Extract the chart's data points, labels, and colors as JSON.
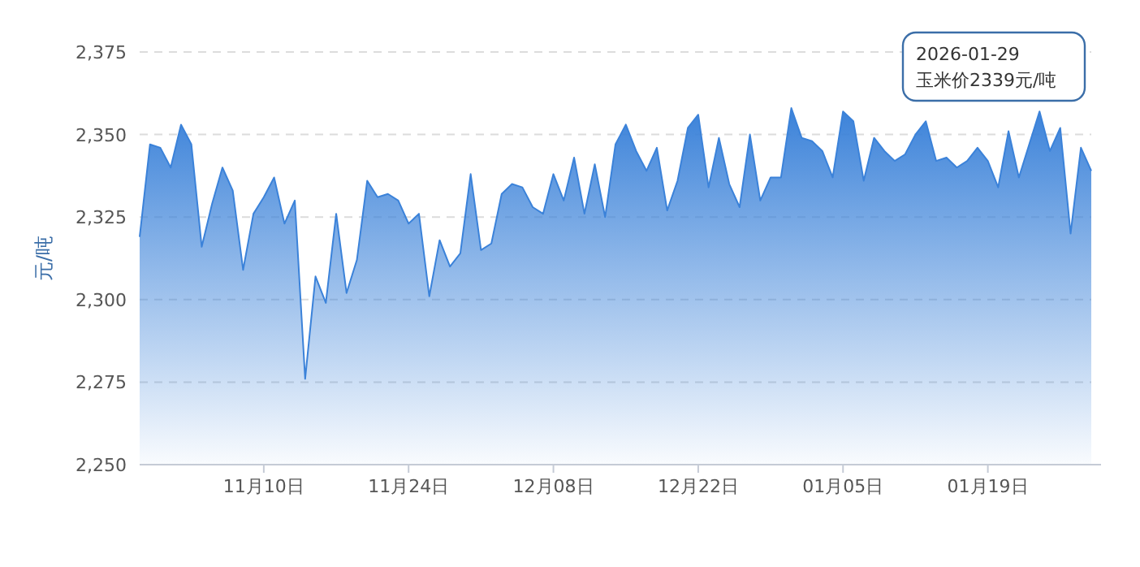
{
  "chart_data": {
    "type": "area",
    "ylabel": "元/吨",
    "x": [
      "2025-10-29",
      "2025-10-30",
      "2025-10-31",
      "2025-11-01",
      "2025-11-02",
      "2025-11-03",
      "2025-11-04",
      "2025-11-05",
      "2025-11-06",
      "2025-11-07",
      "2025-11-08",
      "2025-11-09",
      "2025-11-10",
      "2025-11-11",
      "2025-11-12",
      "2025-11-13",
      "2025-11-14",
      "2025-11-15",
      "2025-11-16",
      "2025-11-17",
      "2025-11-18",
      "2025-11-19",
      "2025-11-20",
      "2025-11-21",
      "2025-11-22",
      "2025-11-23",
      "2025-11-24",
      "2025-11-25",
      "2025-11-26",
      "2025-11-27",
      "2025-11-28",
      "2025-11-29",
      "2025-11-30",
      "2025-12-01",
      "2025-12-02",
      "2025-12-03",
      "2025-12-04",
      "2025-12-05",
      "2025-12-06",
      "2025-12-07",
      "2025-12-08",
      "2025-12-09",
      "2025-12-10",
      "2025-12-11",
      "2025-12-12",
      "2025-12-13",
      "2025-12-14",
      "2025-12-15",
      "2025-12-16",
      "2025-12-17",
      "2025-12-18",
      "2025-12-19",
      "2025-12-20",
      "2025-12-21",
      "2025-12-22",
      "2025-12-23",
      "2025-12-24",
      "2025-12-25",
      "2025-12-26",
      "2025-12-27",
      "2025-12-28",
      "2025-12-29",
      "2025-12-30",
      "2025-12-31",
      "2026-01-01",
      "2026-01-02",
      "2026-01-03",
      "2026-01-04",
      "2026-01-05",
      "2026-01-06",
      "2026-01-07",
      "2026-01-08",
      "2026-01-09",
      "2026-01-10",
      "2026-01-11",
      "2026-01-12",
      "2026-01-13",
      "2026-01-14",
      "2026-01-15",
      "2026-01-16",
      "2026-01-17",
      "2026-01-18",
      "2026-01-19",
      "2026-01-20",
      "2026-01-21",
      "2026-01-22",
      "2026-01-23",
      "2026-01-24",
      "2026-01-25",
      "2026-01-26",
      "2026-01-27",
      "2026-01-28",
      "2026-01-29"
    ],
    "series": [
      {
        "color": "#3b82d9",
        "values": [
          2319,
          2347,
          2346,
          2340,
          2353,
          2347,
          2316,
          2329,
          2340,
          2333,
          2309,
          2326,
          2331,
          2337,
          2323,
          2330,
          2276,
          2307,
          2299,
          2326,
          2302,
          2312,
          2336,
          2331,
          2332,
          2330,
          2323,
          2326,
          2301,
          2318,
          2310,
          2314,
          2338,
          2315,
          2317,
          2332,
          2335,
          2334,
          2328,
          2326,
          2338,
          2330,
          2343,
          2326,
          2341,
          2325,
          2347,
          2353,
          2345,
          2339,
          2346,
          2327,
          2336,
          2352,
          2356,
          2334,
          2349,
          2335,
          2328,
          2350,
          2330,
          2337,
          2337,
          2358,
          2349,
          2348,
          2345,
          2337,
          2357,
          2354,
          2336,
          2349,
          2345,
          2342,
          2344,
          2350,
          2354,
          2342,
          2343,
          2340,
          2342,
          2346,
          2342,
          2334,
          2351,
          2337,
          2347,
          2357,
          2345,
          2352,
          2320,
          2346,
          2339
        ]
      }
    ],
    "xlim": [
      "2025-10-29",
      "2026-01-29"
    ],
    "xticks": [
      {
        "value": "2025-11-10",
        "label": "11月10日"
      },
      {
        "value": "2025-11-24",
        "label": "11月24日"
      },
      {
        "value": "2025-12-08",
        "label": "12月08日"
      },
      {
        "value": "2025-12-22",
        "label": "12月22日"
      },
      {
        "value": "2026-01-05",
        "label": "01月05日"
      },
      {
        "value": "2026-01-19",
        "label": "01月19日"
      }
    ],
    "ylim": [
      2250,
      2375
    ],
    "yticks": [
      {
        "value": 2250,
        "label": "2,250"
      },
      {
        "value": 2275,
        "label": "2,275"
      },
      {
        "value": 2300,
        "label": "2,300"
      },
      {
        "value": 2325,
        "label": "2,325"
      },
      {
        "value": 2350,
        "label": "2,350"
      },
      {
        "value": 2375,
        "label": "2,375"
      }
    ],
    "grid": "y",
    "annotations": [
      "2026-01-29\n玉米价2339元/吨"
    ]
  }
}
